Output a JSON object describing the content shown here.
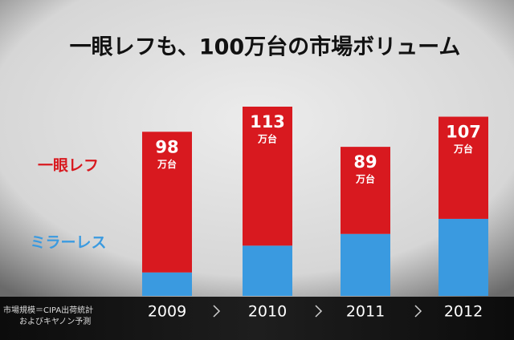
{
  "chart_data": {
    "type": "stacked-bar",
    "title": "一眼レフも、100万台の市場ボリューム",
    "categories": [
      "2009",
      "2010",
      "2011",
      "2012"
    ],
    "series": [
      {
        "name": "ミラーレス",
        "color": "#3a9ae0",
        "values": [
          14,
          30,
          37,
          46
        ]
      },
      {
        "name": "一眼レフ",
        "color": "#d8191f",
        "values": [
          84,
          83,
          52,
          61
        ]
      }
    ],
    "totals": [
      98,
      113,
      89,
      107
    ],
    "unit": "万台",
    "source": [
      "市場規模＝CIPA出荷統計",
      "およびキヤノン予測"
    ]
  }
}
